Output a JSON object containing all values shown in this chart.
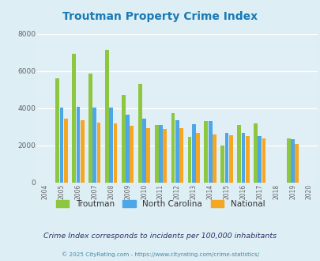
{
  "title": "Troutman Property Crime Index",
  "years": [
    2004,
    2005,
    2006,
    2007,
    2008,
    2009,
    2010,
    2011,
    2012,
    2013,
    2014,
    2015,
    2016,
    2017,
    2018,
    2019,
    2020
  ],
  "troutman": [
    null,
    5600,
    6950,
    5850,
    7150,
    4700,
    5300,
    3100,
    3750,
    2450,
    3300,
    2000,
    3100,
    3200,
    null,
    2400,
    null
  ],
  "north_carolina": [
    null,
    4050,
    4100,
    4050,
    4050,
    3650,
    3450,
    3100,
    3350,
    3150,
    3300,
    2700,
    2700,
    2500,
    null,
    2350,
    null
  ],
  "national": [
    null,
    3450,
    3350,
    3250,
    3200,
    3050,
    2950,
    2900,
    2950,
    2700,
    2600,
    2550,
    2500,
    2400,
    null,
    2100,
    null
  ],
  "troutman_color": "#8dc63f",
  "nc_color": "#4da6e8",
  "national_color": "#f5a623",
  "bg_color": "#ddeef5",
  "plot_bg_color": "#e0eff5",
  "ylim": [
    0,
    8000
  ],
  "yticks": [
    0,
    2000,
    4000,
    6000,
    8000
  ],
  "subtitle": "Crime Index corresponds to incidents per 100,000 inhabitants",
  "footer": "© 2025 CityRating.com - https://www.cityrating.com/crime-statistics/",
  "title_color": "#1a7ab5",
  "subtitle_color": "#333366",
  "footer_color": "#4488aa"
}
